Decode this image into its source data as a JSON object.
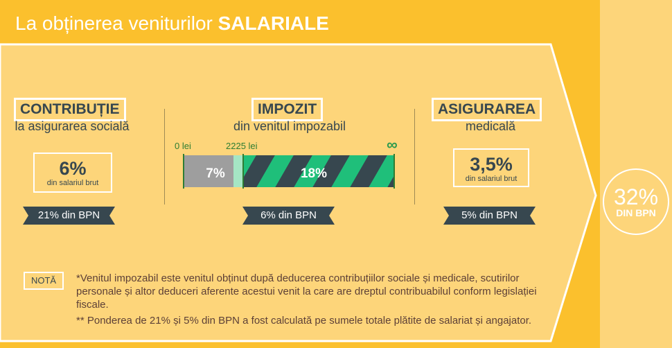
{
  "header": {
    "title_regular": "La obținerea veniturilor",
    "title_bold": "SALARIALE"
  },
  "total": {
    "percent": "32%",
    "label": "DIN BPN"
  },
  "contributie": {
    "title": "CONTRIBUȚIE",
    "subtitle": "la asigurarea socială",
    "percent": "6%",
    "percent_label": "din salariul brut",
    "bpn": "21% din BPN"
  },
  "impozit": {
    "title": "IMPOZIT",
    "subtitle": "din venitul impozabil",
    "scale_start": "0 lei",
    "scale_mid": "2225 lei",
    "scale_end": "∞",
    "band_low": "7%",
    "band_high": "18%",
    "band_threshold_lei": 2225,
    "bpn": "6% din BPN"
  },
  "asigurare": {
    "title": "ASIGURAREA",
    "subtitle": "medicală",
    "percent": "3,5%",
    "percent_label": "din salariul brut",
    "bpn": "5% din BPN"
  },
  "note": {
    "tag": "NOTĂ",
    "line1": "*Venitul impozabil este venitul obținut după deducerea contribuțiilor sociale și medicale, scutirilor personale și altor deduceri aferente acestui venit la care are dreptul contribuabilul conform legislației fiscale.",
    "line2": "** Ponderea de 21% și 5% din BPN a fost calculată pe sumele totale plătite de salariat și angajator."
  },
  "colors": {
    "background": "#fbc02d",
    "panel": "#fdd57a",
    "dark": "#37474f",
    "green": "#1fbf7a",
    "grey": "#9e9e9e"
  }
}
